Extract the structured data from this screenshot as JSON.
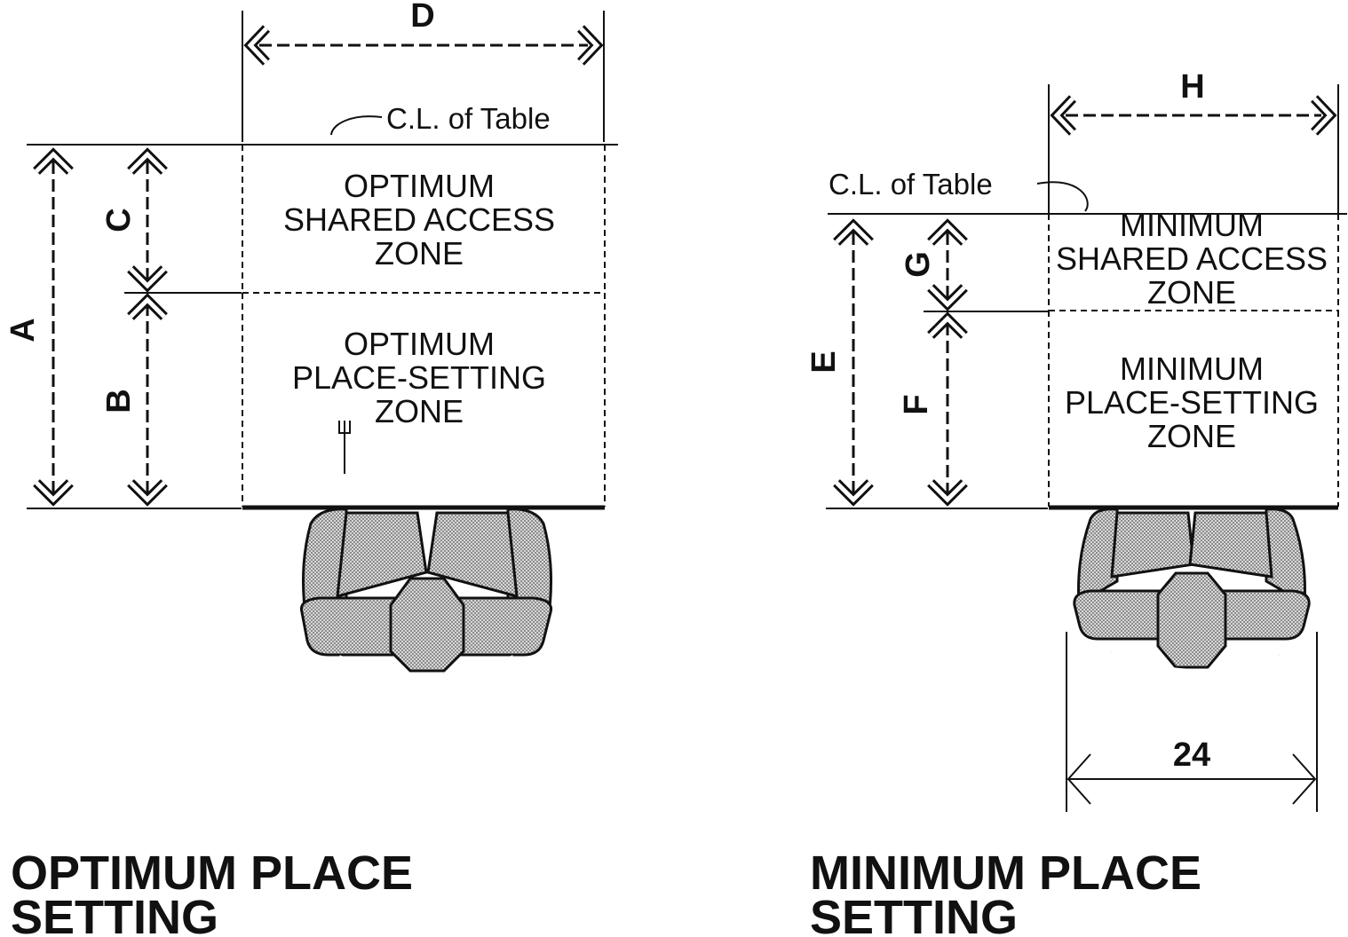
{
  "optimum": {
    "title_line1": "OPTIMUM PLACE",
    "title_line2": "SETTING",
    "shared_zone": [
      "OPTIMUM",
      "SHARED ACCESS",
      "ZONE"
    ],
    "place_zone": [
      "OPTIMUM",
      "PLACE-SETTING",
      "ZONE"
    ],
    "centerline_label": "C.L. of Table",
    "dim_a": "A",
    "dim_b": "B",
    "dim_c": "C",
    "dim_d": "D"
  },
  "minimum": {
    "title_line1": "MINIMUM PLACE",
    "title_line2": "SETTING",
    "shared_zone": [
      "MINIMUM",
      "SHARED ACCESS",
      "ZONE"
    ],
    "place_zone": [
      "MINIMUM",
      "PLACE-SETTING",
      "ZONE"
    ],
    "centerline_label": "C.L. of Table",
    "dim_e": "E",
    "dim_f": "F",
    "dim_g": "G",
    "dim_h": "H",
    "dim_width": "24"
  }
}
